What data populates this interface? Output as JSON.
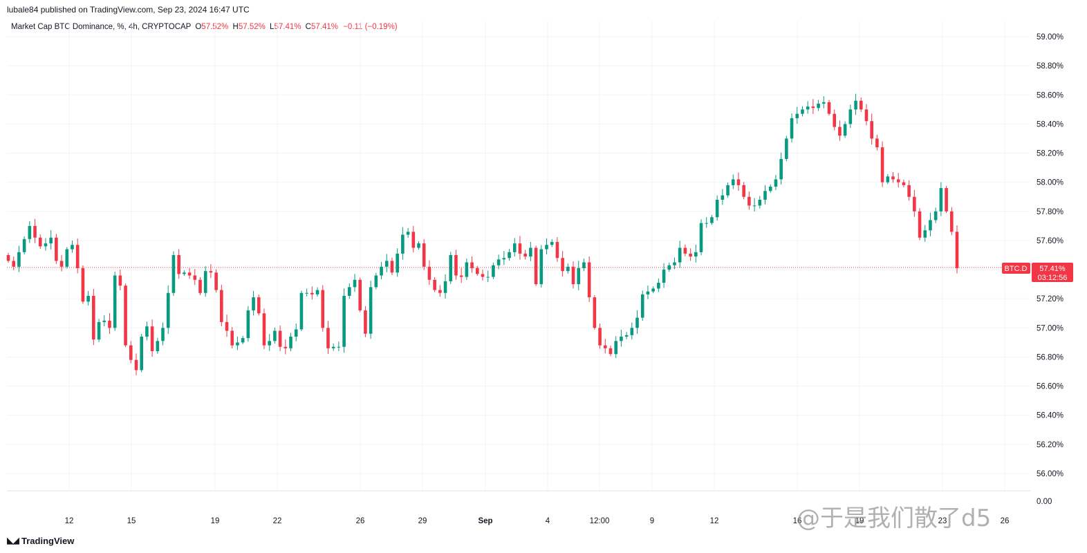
{
  "header": {
    "published": "lubale84 published on TradingView.com, Sep 23, 2024 16:47 UTC",
    "symbol_desc": "Market Cap BTC Dominance, %, 4h, CRYPTOCAP",
    "ohlc": [
      {
        "label": "O",
        "value": "57.52%"
      },
      {
        "label": "H",
        "value": "57.52%"
      },
      {
        "label": "L",
        "value": "57.41%"
      },
      {
        "label": "C",
        "value": "57.41%"
      }
    ],
    "change": "−0.11 (−0.19%)"
  },
  "price_tag": {
    "symbol": "BTC.D",
    "price": "57.41%",
    "countdown": "03:12:56"
  },
  "footer": {
    "logo_text": "TradingView"
  },
  "watermark": "@于是我们散了d5",
  "colors": {
    "up": "#089981",
    "down": "#f23645",
    "grid": "#f0f3fa",
    "axis_text": "#131722"
  },
  "chart_data": {
    "type": "candlestick",
    "title": "Market Cap BTC Dominance, %, 4h, CRYPTOCAP",
    "y_unit": "%",
    "y_axis_ticks": [
      "59.00%",
      "58.80%",
      "58.60%",
      "58.40%",
      "58.20%",
      "58.00%",
      "57.80%",
      "57.60%",
      "57.40%",
      "57.20%",
      "57.00%",
      "56.80%",
      "56.60%",
      "56.40%",
      "56.20%",
      "56.00%",
      "0.00"
    ],
    "x_axis_ticks": [
      "12",
      "15",
      "19",
      "22",
      "26",
      "29",
      "Sep",
      "4",
      "12:00",
      "9",
      "12",
      "16",
      "19",
      "23",
      "26"
    ],
    "last_close": 57.41,
    "close_series": [
      57.46,
      57.42,
      57.52,
      57.61,
      57.7,
      57.62,
      57.56,
      57.58,
      57.62,
      57.46,
      57.42,
      57.54,
      57.57,
      57.41,
      57.18,
      57.22,
      56.92,
      57.04,
      57.05,
      57.0,
      57.36,
      57.29,
      56.88,
      56.78,
      56.71,
      56.94,
      57.01,
      56.84,
      56.91,
      57.0,
      57.24,
      57.5,
      57.37,
      57.38,
      57.36,
      57.33,
      57.24,
      57.39,
      57.38,
      57.26,
      57.04,
      56.98,
      56.88,
      56.9,
      56.93,
      57.12,
      57.21,
      57.1,
      56.88,
      56.91,
      56.98,
      56.87,
      56.86,
      56.94,
      56.99,
      57.24,
      57.24,
      57.23,
      57.26,
      57.0,
      56.86,
      56.87,
      56.87,
      57.22,
      57.28,
      57.33,
      57.12,
      56.96,
      57.28,
      57.36,
      57.42,
      57.46,
      57.38,
      57.51,
      57.64,
      57.66,
      57.55,
      57.58,
      57.42,
      57.33,
      57.26,
      57.24,
      57.32,
      57.5,
      57.36,
      57.35,
      57.45,
      57.41,
      57.37,
      57.35,
      57.35,
      57.43,
      57.47,
      57.48,
      57.52,
      57.58,
      57.51,
      57.49,
      57.55,
      57.3,
      57.54,
      57.57,
      57.59,
      57.48,
      57.39,
      57.42,
      57.3,
      57.41,
      57.45,
      57.21,
      57.0,
      56.88,
      56.86,
      56.82,
      56.91,
      56.94,
      56.95,
      57.0,
      57.07,
      57.23,
      57.25,
      57.27,
      57.31,
      57.4,
      57.43,
      57.45,
      57.55,
      57.51,
      57.49,
      57.52,
      57.72,
      57.72,
      57.76,
      57.88,
      57.91,
      57.98,
      58.02,
      57.98,
      57.9,
      57.84,
      57.84,
      57.88,
      57.94,
      57.97,
      58.02,
      58.16,
      58.3,
      58.44,
      58.47,
      58.5,
      58.52,
      58.51,
      58.54,
      58.55,
      58.47,
      58.38,
      58.32,
      58.4,
      58.5,
      58.56,
      58.5,
      58.42,
      58.3,
      58.24,
      58.0,
      58.04,
      58.02,
      58.0,
      57.98,
      57.9,
      57.8,
      57.62,
      57.67,
      57.74,
      57.8,
      57.96,
      57.8,
      57.66,
      57.41
    ],
    "approx_range": {
      "min": 56.56,
      "max": 58.7
    }
  }
}
